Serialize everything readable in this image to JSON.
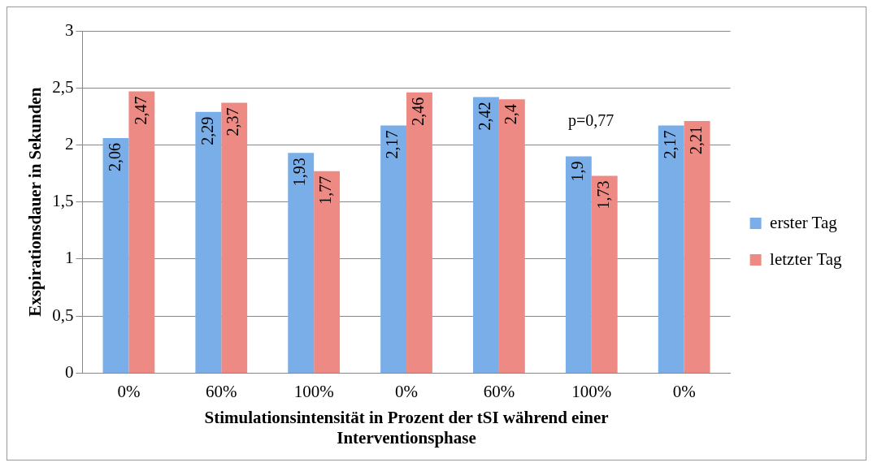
{
  "chart_data": {
    "type": "bar",
    "xlabel": "Stimulationsintensität in Prozent der tSI während einer Interventionsphase",
    "ylabel": "Exspirationsdauer in Sekunden",
    "categories": [
      "0%",
      "60%",
      "100%",
      "0%",
      "60%",
      "100%",
      "0%"
    ],
    "series": [
      {
        "name": "erster Tag",
        "color": "#7aaee8",
        "values": [
          2.06,
          2.29,
          1.93,
          2.17,
          2.42,
          1.9,
          2.17
        ],
        "value_labels": [
          "2,06",
          "2,29",
          "1,93",
          "2,17",
          "2,42",
          "1,9",
          "2,17"
        ]
      },
      {
        "name": "letzter Tag",
        "color": "#ee8a84",
        "values": [
          2.47,
          2.37,
          1.77,
          2.46,
          2.4,
          1.73,
          2.21
        ],
        "value_labels": [
          "2,47",
          "2,37",
          "1,77",
          "2,46",
          "2,4",
          "1,73",
          "2,21"
        ]
      }
    ],
    "ylim": [
      0,
      3
    ],
    "yticks": [
      {
        "value": 0,
        "label": "0"
      },
      {
        "value": 0.5,
        "label": "0,5"
      },
      {
        "value": 1,
        "label": "1"
      },
      {
        "value": 1.5,
        "label": "1,5"
      },
      {
        "value": 2,
        "label": "2"
      },
      {
        "value": 2.5,
        "label": "2,5"
      },
      {
        "value": 3,
        "label": "3"
      }
    ],
    "grid": "y",
    "legend": "right",
    "annotations": [
      "p=0,77"
    ]
  }
}
